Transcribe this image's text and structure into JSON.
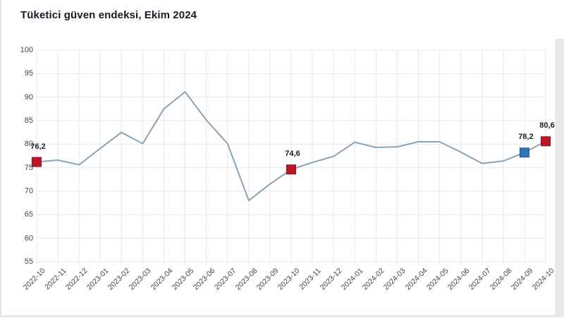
{
  "page": {
    "title": "Tüketici güven endeksi, Ekim 2024"
  },
  "colors": {
    "line": "#8BA3B5",
    "marker_red": "#BE1622",
    "marker_red_border": "#8E1019",
    "marker_blue": "#2E77B5",
    "marker_blue_border": "#1F5A8C",
    "grid": "#E8E8EC",
    "axis_text": "#454545",
    "label_text": "#1D1D1D",
    "title_text": "#1A1A24",
    "page_edge": "#E9E9E9"
  },
  "chart_data": {
    "type": "line",
    "title": "Tüketici güven endeksi, Ekim 2024",
    "x": [
      "2022-10",
      "2022-11",
      "2022-12",
      "2023-01",
      "2023-02",
      "2023-03",
      "2023-04",
      "2023-05",
      "2023-06",
      "2023-07",
      "2023-08",
      "2023-09",
      "2023-10",
      "2023-11",
      "2023-12",
      "2024-01",
      "2024-02",
      "2024-03",
      "2024-04",
      "2024-05",
      "2024-06",
      "2024-07",
      "2024-08",
      "2024-09",
      "2024-10"
    ],
    "series": [
      {
        "name": "Tüketici güven endeksi",
        "values": [
          76.2,
          76.6,
          75.6,
          79.1,
          82.5,
          80.1,
          87.5,
          91.1,
          85.1,
          80.1,
          68.0,
          71.5,
          74.6,
          76.1,
          77.4,
          80.4,
          79.3,
          79.4,
          80.5,
          80.5,
          78.3,
          75.9,
          76.4,
          78.2,
          80.6
        ]
      }
    ],
    "ylim": [
      55,
      100
    ],
    "yticks": [
      100,
      95,
      90,
      85,
      80,
      75,
      70,
      65,
      60,
      55
    ],
    "grid": true,
    "legend": "none",
    "xlabel": "",
    "ylabel": "",
    "highlighted_points": [
      {
        "x": "2022-10",
        "value": 76.2,
        "label": "76,2",
        "marker": "red"
      },
      {
        "x": "2023-10",
        "value": 74.6,
        "label": "74,6",
        "marker": "red"
      },
      {
        "x": "2024-09",
        "value": 78.2,
        "label": "78,2",
        "marker": "blue"
      },
      {
        "x": "2024-10",
        "value": 80.6,
        "label": "80,6",
        "marker": "red"
      }
    ]
  }
}
